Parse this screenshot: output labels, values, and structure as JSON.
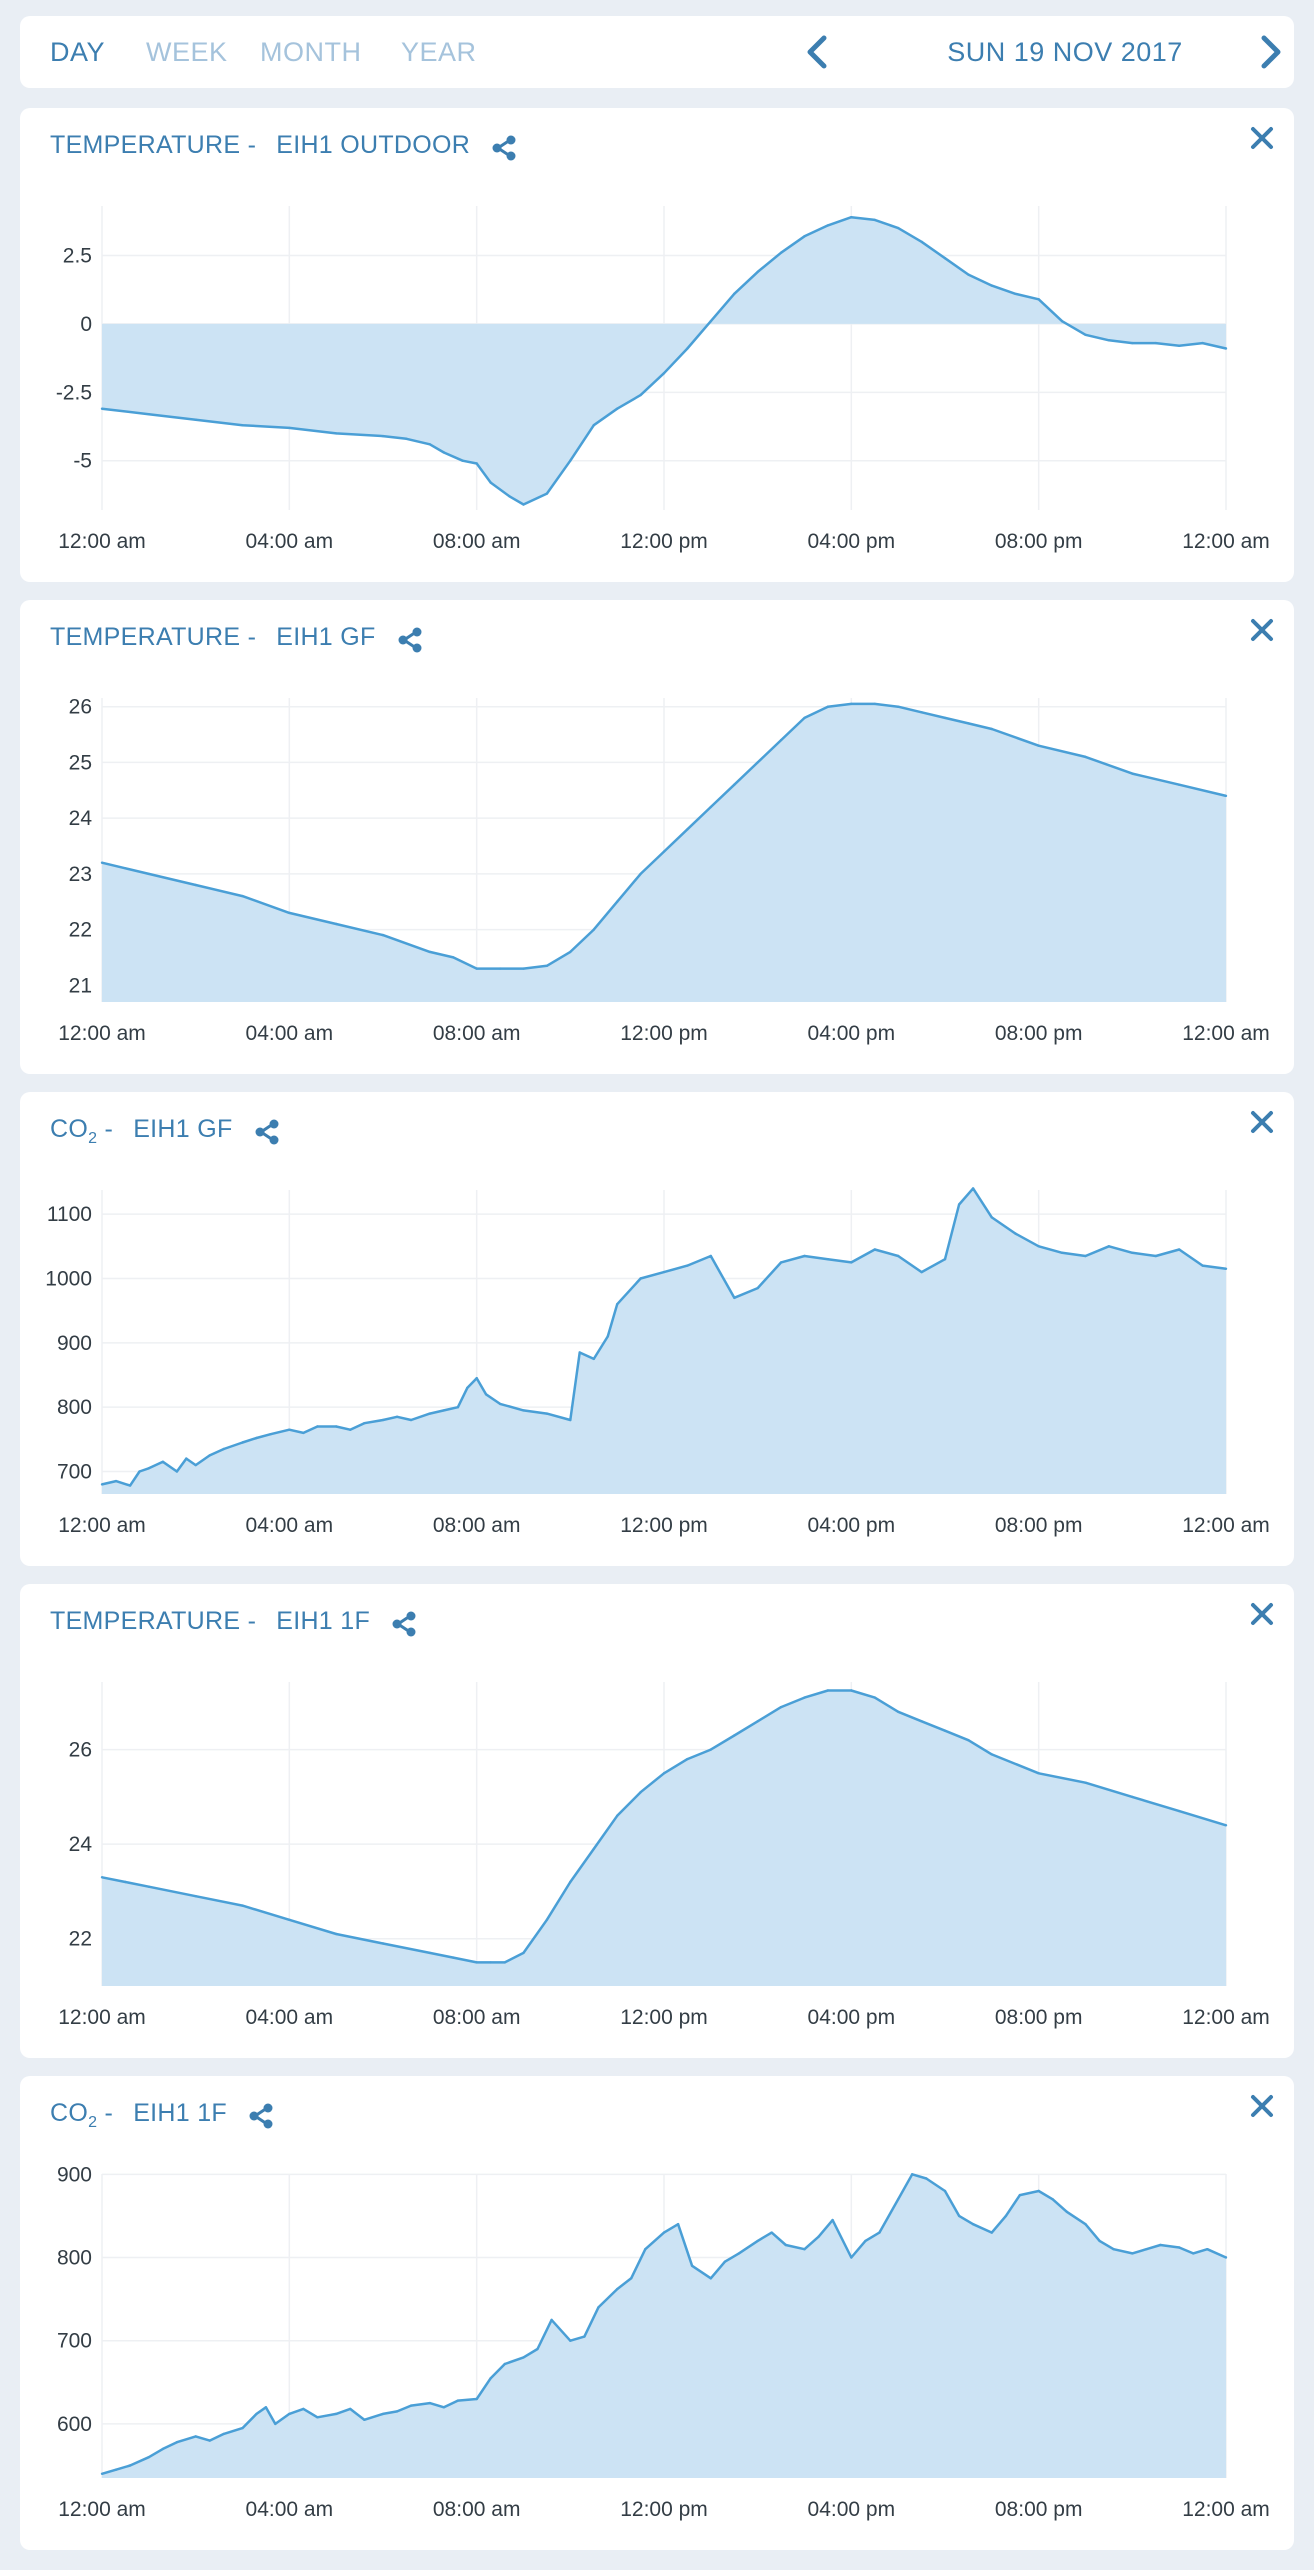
{
  "nav": {
    "tabs": [
      {
        "label": "DAY",
        "active": true
      },
      {
        "label": "WEEK",
        "active": false
      },
      {
        "label": "MONTH",
        "active": false
      },
      {
        "label": "YEAR",
        "active": false
      }
    ],
    "date": "SUN 19 NOV 2017",
    "prev_icon": "chevron-left-icon",
    "next_icon": "chevron-right-icon"
  },
  "colors": {
    "line": "#4a9fd6",
    "fill": "#cce3f4",
    "grid": "#eef0f3",
    "text": "#3c7eb0"
  },
  "chart_data": [
    {
      "type": "area",
      "title_metric": "TEMPERATURE -",
      "title_sub": "",
      "title_location": "EIH1 OUTDOOR",
      "xlabel": "",
      "ylabel": "",
      "x_ticks": [
        "12:00 am",
        "04:00 am",
        "08:00 am",
        "12:00 pm",
        "04:00 pm",
        "08:00 pm",
        "12:00 am"
      ],
      "y_ticks": [
        2.5,
        0,
        -2.5,
        -5
      ],
      "ylim": [
        -6.8,
        4.6
      ],
      "baseline": 0,
      "x": [
        0,
        1,
        2,
        3,
        4,
        5,
        6,
        6.5,
        7,
        7.3,
        7.7,
        8,
        8.3,
        8.7,
        9,
        9.5,
        10,
        10.5,
        11,
        11.5,
        12,
        12.5,
        13,
        13.5,
        14,
        14.5,
        15,
        15.5,
        16,
        16.5,
        17,
        17.5,
        18,
        18.5,
        19,
        19.5,
        20,
        20.5,
        21,
        21.5,
        22,
        22.5,
        23,
        23.5,
        24
      ],
      "values": [
        -3.1,
        -3.3,
        -3.5,
        -3.7,
        -3.8,
        -4.0,
        -4.1,
        -4.2,
        -4.4,
        -4.7,
        -5.0,
        -5.1,
        -5.8,
        -6.3,
        -6.6,
        -6.2,
        -5.0,
        -3.7,
        -3.1,
        -2.6,
        -1.8,
        -0.9,
        0.1,
        1.1,
        1.9,
        2.6,
        3.2,
        3.6,
        3.9,
        3.8,
        3.5,
        3.0,
        2.4,
        1.8,
        1.4,
        1.1,
        0.9,
        0.1,
        -0.4,
        -0.6,
        -0.7,
        -0.7,
        -0.8,
        -0.7,
        -0.9
      ]
    },
    {
      "type": "area",
      "title_metric": "TEMPERATURE -",
      "title_sub": "",
      "title_location": "EIH1 GF",
      "xlabel": "",
      "ylabel": "",
      "x_ticks": [
        "12:00 am",
        "04:00 am",
        "08:00 am",
        "12:00 pm",
        "04:00 pm",
        "08:00 pm",
        "12:00 am"
      ],
      "y_ticks": [
        26,
        25,
        24,
        23,
        22,
        21
      ],
      "ylim": [
        20.7,
        26.3
      ],
      "baseline": 20.7,
      "x": [
        0,
        0.5,
        1,
        2,
        3,
        4,
        5,
        6,
        7,
        7.5,
        8,
        8.5,
        9,
        9.5,
        10,
        10.5,
        11,
        11.5,
        12,
        12.5,
        13,
        13.5,
        14,
        14.5,
        15,
        15.5,
        16,
        16.5,
        17,
        17.5,
        18,
        18.5,
        19,
        20,
        21,
        22,
        23,
        24
      ],
      "values": [
        23.2,
        23.1,
        23.0,
        22.8,
        22.6,
        22.3,
        22.1,
        21.9,
        21.6,
        21.5,
        21.3,
        21.3,
        21.3,
        21.35,
        21.6,
        22.0,
        22.5,
        23.0,
        23.4,
        23.8,
        24.2,
        24.6,
        25.0,
        25.4,
        25.8,
        26.0,
        26.05,
        26.05,
        26.0,
        25.9,
        25.8,
        25.7,
        25.6,
        25.3,
        25.1,
        24.8,
        24.6,
        24.4
      ]
    },
    {
      "type": "area",
      "title_metric": "CO",
      "title_sub": "2",
      "title_location": "EIH1 GF",
      "xlabel": "",
      "ylabel": "",
      "x_ticks": [
        "12:00 am",
        "04:00 am",
        "08:00 am",
        "12:00 pm",
        "04:00 pm",
        "08:00 pm",
        "12:00 am"
      ],
      "y_ticks": [
        1100,
        1000,
        900,
        800,
        700
      ],
      "ylim": [
        665,
        1150
      ],
      "baseline": 665,
      "x": [
        0,
        0.3,
        0.6,
        0.8,
        1,
        1.3,
        1.6,
        1.8,
        2,
        2.3,
        2.6,
        3,
        3.3,
        3.6,
        4,
        4.3,
        4.6,
        5,
        5.3,
        5.6,
        6,
        6.3,
        6.6,
        7,
        7.3,
        7.6,
        7.8,
        8,
        8.2,
        8.5,
        9,
        9.5,
        10,
        10.2,
        10.5,
        10.8,
        11,
        11.5,
        12,
        12.5,
        13,
        13.5,
        14,
        14.5,
        15,
        15.5,
        16,
        16.5,
        17,
        17.5,
        18,
        18.3,
        18.6,
        19,
        19.5,
        20,
        20.5,
        21,
        21.5,
        22,
        22.5,
        23,
        23.5,
        24
      ],
      "values": [
        680,
        685,
        678,
        700,
        705,
        715,
        700,
        720,
        710,
        725,
        735,
        745,
        752,
        758,
        765,
        760,
        770,
        770,
        765,
        775,
        780,
        785,
        780,
        790,
        795,
        800,
        830,
        845,
        820,
        805,
        795,
        790,
        780,
        885,
        875,
        910,
        960,
        1000,
        1010,
        1020,
        1035,
        970,
        985,
        1025,
        1035,
        1030,
        1025,
        1045,
        1035,
        1010,
        1030,
        1115,
        1140,
        1095,
        1070,
        1050,
        1040,
        1035,
        1050,
        1040,
        1035,
        1045,
        1020,
        1015
      ]
    },
    {
      "type": "area",
      "title_metric": "TEMPERATURE -",
      "title_sub": "",
      "title_location": "EIH1 1F",
      "xlabel": "",
      "ylabel": "",
      "x_ticks": [
        "12:00 am",
        "04:00 am",
        "08:00 am",
        "12:00 pm",
        "04:00 pm",
        "08:00 pm",
        "12:00 am"
      ],
      "y_ticks": [
        26,
        24,
        22
      ],
      "ylim": [
        21,
        27.6
      ],
      "baseline": 21,
      "x": [
        0,
        0.5,
        1,
        2,
        3,
        4,
        5,
        6,
        7,
        7.5,
        8,
        8.3,
        8.6,
        9,
        9.5,
        10,
        10.5,
        11,
        11.5,
        12,
        12.5,
        13,
        13.5,
        14,
        14.5,
        15,
        15.5,
        16,
        16.5,
        17,
        17.5,
        18,
        18.5,
        19,
        20,
        21,
        22,
        23,
        24
      ],
      "values": [
        23.3,
        23.2,
        23.1,
        22.9,
        22.7,
        22.4,
        22.1,
        21.9,
        21.7,
        21.6,
        21.5,
        21.5,
        21.5,
        21.7,
        22.4,
        23.2,
        23.9,
        24.6,
        25.1,
        25.5,
        25.8,
        26.0,
        26.3,
        26.6,
        26.9,
        27.1,
        27.25,
        27.25,
        27.1,
        26.8,
        26.6,
        26.4,
        26.2,
        25.9,
        25.5,
        25.3,
        25.0,
        24.7,
        24.4
      ]
    },
    {
      "type": "area",
      "title_metric": "CO",
      "title_sub": "2",
      "title_location": "EIH1 1F",
      "xlabel": "",
      "ylabel": "",
      "x_ticks": [
        "12:00 am",
        "04:00 am",
        "08:00 am",
        "12:00 pm",
        "04:00 pm",
        "08:00 pm",
        "12:00 am"
      ],
      "y_ticks": [
        900,
        800,
        700,
        600
      ],
      "ylim": [
        535,
        910
      ],
      "baseline": 535,
      "x": [
        0,
        0.3,
        0.6,
        1,
        1.3,
        1.6,
        2,
        2.3,
        2.6,
        3,
        3.3,
        3.5,
        3.7,
        4,
        4.3,
        4.6,
        5,
        5.3,
        5.6,
        6,
        6.3,
        6.6,
        7,
        7.3,
        7.6,
        8,
        8.3,
        8.6,
        9,
        9.3,
        9.6,
        10,
        10.3,
        10.6,
        11,
        11.3,
        11.6,
        12,
        12.3,
        12.6,
        13,
        13.3,
        13.6,
        14,
        14.3,
        14.6,
        15,
        15.3,
        15.6,
        16,
        16.3,
        16.6,
        17,
        17.3,
        17.6,
        18,
        18.3,
        18.6,
        19,
        19.3,
        19.6,
        20,
        20.3,
        20.6,
        21,
        21.3,
        21.6,
        22,
        22.3,
        22.6,
        23,
        23.3,
        23.6,
        24
      ],
      "values": [
        540,
        545,
        550,
        560,
        570,
        578,
        585,
        580,
        588,
        595,
        612,
        620,
        600,
        612,
        618,
        608,
        612,
        618,
        605,
        612,
        615,
        622,
        625,
        620,
        628,
        630,
        655,
        672,
        680,
        690,
        725,
        700,
        705,
        740,
        762,
        775,
        810,
        830,
        840,
        790,
        775,
        795,
        805,
        820,
        830,
        815,
        810,
        825,
        845,
        800,
        820,
        830,
        870,
        900,
        895,
        880,
        850,
        840,
        830,
        850,
        875,
        880,
        870,
        855,
        840,
        820,
        810,
        805,
        810,
        815,
        812,
        805,
        810,
        800
      ]
    }
  ]
}
